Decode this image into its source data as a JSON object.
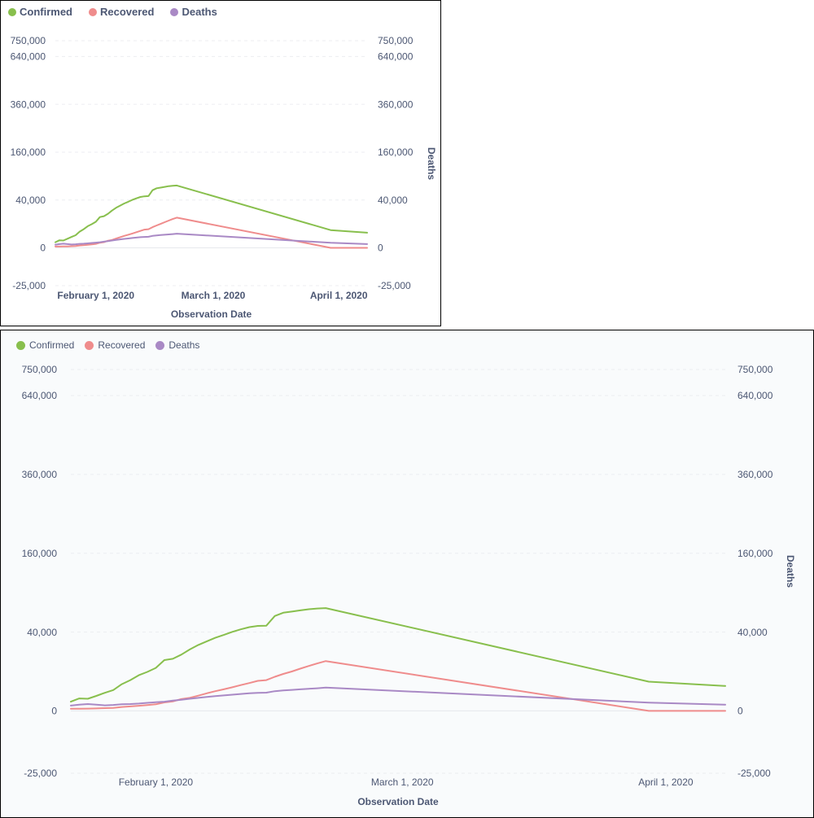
{
  "chart_data": [
    {
      "type": "line",
      "title": "",
      "xlabel": "Observation Date",
      "ylabel_left": "",
      "ylabel_right": "Deaths",
      "x_ticks": [
        "February 1, 2020",
        "March 1, 2020",
        "April 1, 2020"
      ],
      "y_ticks": [
        "750,000",
        "640,000",
        "360,000",
        "160,000",
        "40,000",
        "0",
        "-25,000"
      ],
      "y_tick_values": [
        750000,
        640000,
        360000,
        160000,
        40000,
        0,
        -25000
      ],
      "y_scale": "pow",
      "y_exponent": 0.5,
      "ylim": [
        -25000,
        750000
      ],
      "x": [
        "2020-01-22",
        "2020-01-23",
        "2020-01-24",
        "2020-01-25",
        "2020-01-26",
        "2020-01-27",
        "2020-01-28",
        "2020-01-29",
        "2020-01-30",
        "2020-01-31",
        "2020-02-01",
        "2020-02-02",
        "2020-02-03",
        "2020-02-04",
        "2020-02-05",
        "2020-02-06",
        "2020-02-07",
        "2020-02-08",
        "2020-02-09",
        "2020-02-10",
        "2020-02-11",
        "2020-02-12",
        "2020-02-13",
        "2020-02-14",
        "2020-02-15",
        "2020-02-16",
        "2020-02-17",
        "2020-02-18",
        "2020-02-19",
        "2020-02-20",
        "2020-02-21",
        "2020-03-30",
        "2020-04-08"
      ],
      "series": [
        {
          "name": "Confirmed",
          "color": "#88bf4d",
          "values": [
            550,
            1000,
            950,
            1450,
            2100,
            2800,
            4600,
            6100,
            8200,
            9800,
            11900,
            16600,
            17500,
            20400,
            24300,
            28000,
            31200,
            34400,
            37100,
            40200,
            42800,
            45200,
            46500,
            46800,
            58000,
            62000,
            63500,
            65000,
            66500,
            67500,
            68000,
            5500,
            4000
          ]
        },
        {
          "name": "Recovered",
          "color": "#ef8c8c",
          "values": [
            30,
            30,
            35,
            40,
            50,
            60,
            100,
            130,
            170,
            220,
            280,
            460,
            580,
            900,
            1100,
            1500,
            2000,
            2500,
            3000,
            3600,
            4300,
            5000,
            5800,
            6100,
            7500,
            8800,
            10000,
            11500,
            13000,
            14500,
            16000,
            0,
            0
          ]
        },
        {
          "name": "Deaths",
          "color": "#a989c5",
          "values": [
            180,
            250,
            300,
            250,
            200,
            230,
            280,
            300,
            350,
            420,
            480,
            550,
            680,
            800,
            950,
            1100,
            1250,
            1400,
            1550,
            1700,
            1850,
            2000,
            2100,
            2150,
            2500,
            2700,
            2850,
            3000,
            3150,
            3300,
            3500,
            450,
            250
          ]
        }
      ]
    },
    {
      "type": "line",
      "title": "",
      "xlabel": "Observation Date",
      "ylabel_left": "",
      "ylabel_right": "Deaths",
      "x_ticks": [
        "February 1, 2020",
        "March 1, 2020",
        "April 1, 2020"
      ],
      "y_ticks": [
        "750,000",
        "640,000",
        "360,000",
        "160,000",
        "40,000",
        "0",
        "-25,000"
      ],
      "y_tick_values": [
        750000,
        640000,
        360000,
        160000,
        40000,
        0,
        -25000
      ],
      "y_scale": "pow",
      "y_exponent": 0.5,
      "ylim": [
        -25000,
        750000
      ],
      "x": [
        "2020-01-22",
        "2020-01-23",
        "2020-01-24",
        "2020-01-25",
        "2020-01-26",
        "2020-01-27",
        "2020-01-28",
        "2020-01-29",
        "2020-01-30",
        "2020-01-31",
        "2020-02-01",
        "2020-02-02",
        "2020-02-03",
        "2020-02-04",
        "2020-02-05",
        "2020-02-06",
        "2020-02-07",
        "2020-02-08",
        "2020-02-09",
        "2020-02-10",
        "2020-02-11",
        "2020-02-12",
        "2020-02-13",
        "2020-02-14",
        "2020-02-15",
        "2020-02-16",
        "2020-02-17",
        "2020-02-18",
        "2020-02-19",
        "2020-02-20",
        "2020-02-21",
        "2020-03-30",
        "2020-04-08"
      ],
      "series": [
        {
          "name": "Confirmed",
          "color": "#88bf4d",
          "values": [
            550,
            1000,
            950,
            1450,
            2100,
            2800,
            4600,
            6100,
            8200,
            9800,
            11900,
            16600,
            17500,
            20400,
            24300,
            28000,
            31200,
            34400,
            37100,
            40200,
            42800,
            45200,
            46500,
            46800,
            58000,
            62000,
            63500,
            65000,
            66500,
            67500,
            68000,
            5500,
            4000
          ]
        },
        {
          "name": "Recovered",
          "color": "#ef8c8c",
          "values": [
            30,
            30,
            35,
            40,
            50,
            60,
            100,
            130,
            170,
            220,
            280,
            460,
            580,
            900,
            1100,
            1500,
            2000,
            2500,
            3000,
            3600,
            4300,
            5000,
            5800,
            6100,
            7500,
            8800,
            10000,
            11500,
            13000,
            14500,
            16000,
            0,
            0
          ]
        },
        {
          "name": "Deaths",
          "color": "#a989c5",
          "values": [
            180,
            250,
            300,
            250,
            200,
            230,
            280,
            300,
            350,
            420,
            480,
            550,
            680,
            800,
            950,
            1100,
            1250,
            1400,
            1550,
            1700,
            1850,
            2000,
            2100,
            2150,
            2500,
            2700,
            2850,
            3000,
            3150,
            3300,
            3500,
            450,
            250
          ]
        }
      ]
    }
  ]
}
